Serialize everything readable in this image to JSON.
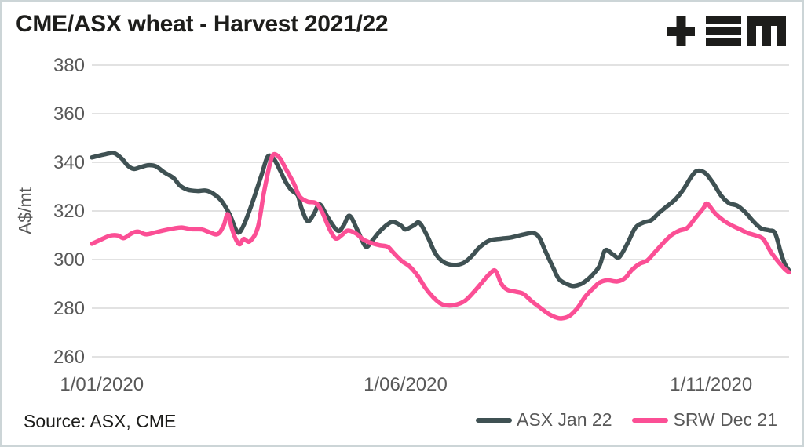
{
  "page": {
    "title": "CME/ASX wheat - Harvest 2021/22",
    "source": "Source: ASX, CME"
  },
  "colors": {
    "title_text": "#1d1d1b",
    "axis_text": "#595959",
    "grid": "#d9d9d9",
    "logo": "#1d1d1b",
    "asx_line": "#3f5153",
    "srw_line": "#fb4f95",
    "border": "#ccd5d7"
  },
  "legend": {
    "items": [
      {
        "label": "ASX Jan 22",
        "color": "#3f5153"
      },
      {
        "label": "SRW Dec 21",
        "color": "#fb4f95"
      }
    ]
  },
  "chart_data": {
    "type": "line",
    "title": "CME/ASX wheat - Harvest 2021/22",
    "xlabel": "",
    "ylabel": "A$/mt",
    "ylim": [
      260,
      380
    ],
    "y_ticks": [
      380,
      360,
      340,
      320,
      300,
      280,
      260
    ],
    "x_domain_days": [
      0,
      349
    ],
    "x_ticks": [
      {
        "label": "1/01/2020",
        "day": 5
      },
      {
        "label": "1/06/2020",
        "day": 157
      },
      {
        "label": "1/11/2020",
        "day": 310
      }
    ],
    "grid": "horizontal-only",
    "legend_position": "bottom-right",
    "units": "A$/mt",
    "series": [
      {
        "name": "ASX Jan 22",
        "color": "#3f5153",
        "points": [
          [
            0,
            342
          ],
          [
            6,
            343.2
          ],
          [
            11,
            343.8
          ],
          [
            15,
            341.5
          ],
          [
            18,
            338.6
          ],
          [
            21,
            337.3
          ],
          [
            24,
            337.9
          ],
          [
            28,
            338.8
          ],
          [
            32,
            338.4
          ],
          [
            36,
            336
          ],
          [
            41,
            333.5
          ],
          [
            44,
            330.5
          ],
          [
            48,
            328.7
          ],
          [
            53,
            328.2
          ],
          [
            57,
            328.4
          ],
          [
            61,
            327
          ],
          [
            65,
            324
          ],
          [
            69,
            318.5
          ],
          [
            72,
            312.5
          ],
          [
            74,
            311.3
          ],
          [
            77,
            316
          ],
          [
            81,
            325
          ],
          [
            85,
            335
          ],
          [
            88,
            342.3
          ],
          [
            91,
            341.5
          ],
          [
            94,
            337
          ],
          [
            97,
            332
          ],
          [
            100,
            328.5
          ],
          [
            103,
            326.5
          ],
          [
            105,
            321
          ],
          [
            108,
            315.8
          ],
          [
            111,
            318.5
          ],
          [
            114,
            322.7
          ],
          [
            118,
            317.5
          ],
          [
            123,
            311.9
          ],
          [
            126,
            314
          ],
          [
            129,
            318
          ],
          [
            133,
            312
          ],
          [
            137,
            305.4
          ],
          [
            140,
            307.5
          ],
          [
            144,
            311.5
          ],
          [
            148,
            314.5
          ],
          [
            151,
            315.5
          ],
          [
            155,
            313.8
          ],
          [
            157,
            312.4
          ],
          [
            161,
            314
          ],
          [
            164,
            315.1
          ],
          [
            168,
            309.5
          ],
          [
            172,
            302.5
          ],
          [
            176,
            299
          ],
          [
            181,
            297.8
          ],
          [
            186,
            298.6
          ],
          [
            190,
            301.3
          ],
          [
            194,
            305
          ],
          [
            199,
            307.8
          ],
          [
            205,
            308.6
          ],
          [
            210,
            309.1
          ],
          [
            216,
            310.3
          ],
          [
            221,
            310.9
          ],
          [
            224,
            309
          ],
          [
            227,
            303.5
          ],
          [
            231,
            296.5
          ],
          [
            234,
            291.8
          ],
          [
            239,
            289.5
          ],
          [
            242,
            289.2
          ],
          [
            246,
            290.5
          ],
          [
            250,
            293.2
          ],
          [
            254,
            297.3
          ],
          [
            257,
            303.8
          ],
          [
            261,
            302
          ],
          [
            264,
            301
          ],
          [
            268,
            306.5
          ],
          [
            272,
            313
          ],
          [
            276,
            315.2
          ],
          [
            280,
            316.2
          ],
          [
            284,
            319.3
          ],
          [
            288,
            322
          ],
          [
            292,
            324.7
          ],
          [
            296,
            328.7
          ],
          [
            300,
            334
          ],
          [
            303,
            336.5
          ],
          [
            307,
            335.6
          ],
          [
            311,
            331.5
          ],
          [
            315,
            326.3
          ],
          [
            319,
            323.2
          ],
          [
            323,
            322.2
          ],
          [
            327,
            319.5
          ],
          [
            331,
            315.8
          ],
          [
            335,
            312.8
          ],
          [
            339,
            312
          ],
          [
            342,
            310.8
          ],
          [
            345,
            302.5
          ],
          [
            347,
            298
          ],
          [
            349,
            295.5
          ]
        ]
      },
      {
        "name": "SRW Dec 21",
        "color": "#fb4f95",
        "points": [
          [
            0,
            306.5
          ],
          [
            4,
            308
          ],
          [
            9,
            309.8
          ],
          [
            13,
            309.9
          ],
          [
            16,
            308.8
          ],
          [
            20,
            310.8
          ],
          [
            23,
            311.5
          ],
          [
            27,
            310.4
          ],
          [
            31,
            311
          ],
          [
            36,
            312
          ],
          [
            41,
            312.8
          ],
          [
            45,
            313.2
          ],
          [
            50,
            312.5
          ],
          [
            55,
            312.4
          ],
          [
            59,
            311.2
          ],
          [
            63,
            310.5
          ],
          [
            66,
            314
          ],
          [
            68,
            318.7
          ],
          [
            70,
            313
          ],
          [
            72,
            308.5
          ],
          [
            74,
            306.3
          ],
          [
            76,
            308.5
          ],
          [
            79,
            307.5
          ],
          [
            83,
            313
          ],
          [
            86,
            327
          ],
          [
            89,
            339
          ],
          [
            91,
            343.3
          ],
          [
            94,
            341.8
          ],
          [
            97,
            337.5
          ],
          [
            101,
            331.5
          ],
          [
            104,
            326
          ],
          [
            108,
            323.8
          ],
          [
            112,
            323.3
          ],
          [
            115,
            320
          ],
          [
            119,
            312.5
          ],
          [
            122,
            308.7
          ],
          [
            125,
            310
          ],
          [
            128,
            311.9
          ],
          [
            132,
            310.8
          ],
          [
            136,
            308.2
          ],
          [
            140,
            306.8
          ],
          [
            144,
            305.9
          ],
          [
            148,
            305.3
          ],
          [
            151,
            302.8
          ],
          [
            155,
            299.5
          ],
          [
            159,
            297.2
          ],
          [
            163,
            293.5
          ],
          [
            167,
            288.3
          ],
          [
            171,
            284.4
          ],
          [
            175,
            281.7
          ],
          [
            179,
            281.1
          ],
          [
            183,
            281.6
          ],
          [
            187,
            283.2
          ],
          [
            191,
            286.5
          ],
          [
            195,
            290.3
          ],
          [
            199,
            294
          ],
          [
            202,
            295.4
          ],
          [
            205,
            290
          ],
          [
            208,
            287.6
          ],
          [
            212,
            286.8
          ],
          [
            216,
            285.9
          ],
          [
            220,
            283
          ],
          [
            224,
            280.5
          ],
          [
            228,
            278
          ],
          [
            232,
            276.3
          ],
          [
            235,
            275.8
          ],
          [
            239,
            276.8
          ],
          [
            243,
            280
          ],
          [
            247,
            284.8
          ],
          [
            251,
            288.2
          ],
          [
            254,
            290.5
          ],
          [
            258,
            291.5
          ],
          [
            263,
            291
          ],
          [
            267,
            292.5
          ],
          [
            270,
            295.5
          ],
          [
            274,
            298.2
          ],
          [
            278,
            299.6
          ],
          [
            282,
            303.2
          ],
          [
            286,
            306.8
          ],
          [
            290,
            310
          ],
          [
            294,
            311.9
          ],
          [
            298,
            313
          ],
          [
            302,
            317
          ],
          [
            306,
            321
          ],
          [
            308,
            323
          ],
          [
            312,
            319
          ],
          [
            316,
            316.2
          ],
          [
            320,
            314.2
          ],
          [
            324,
            312.6
          ],
          [
            328,
            311
          ],
          [
            332,
            310
          ],
          [
            336,
            308.5
          ],
          [
            340,
            303
          ],
          [
            344,
            298.7
          ],
          [
            347,
            296
          ],
          [
            349,
            294.7
          ]
        ]
      }
    ]
  }
}
